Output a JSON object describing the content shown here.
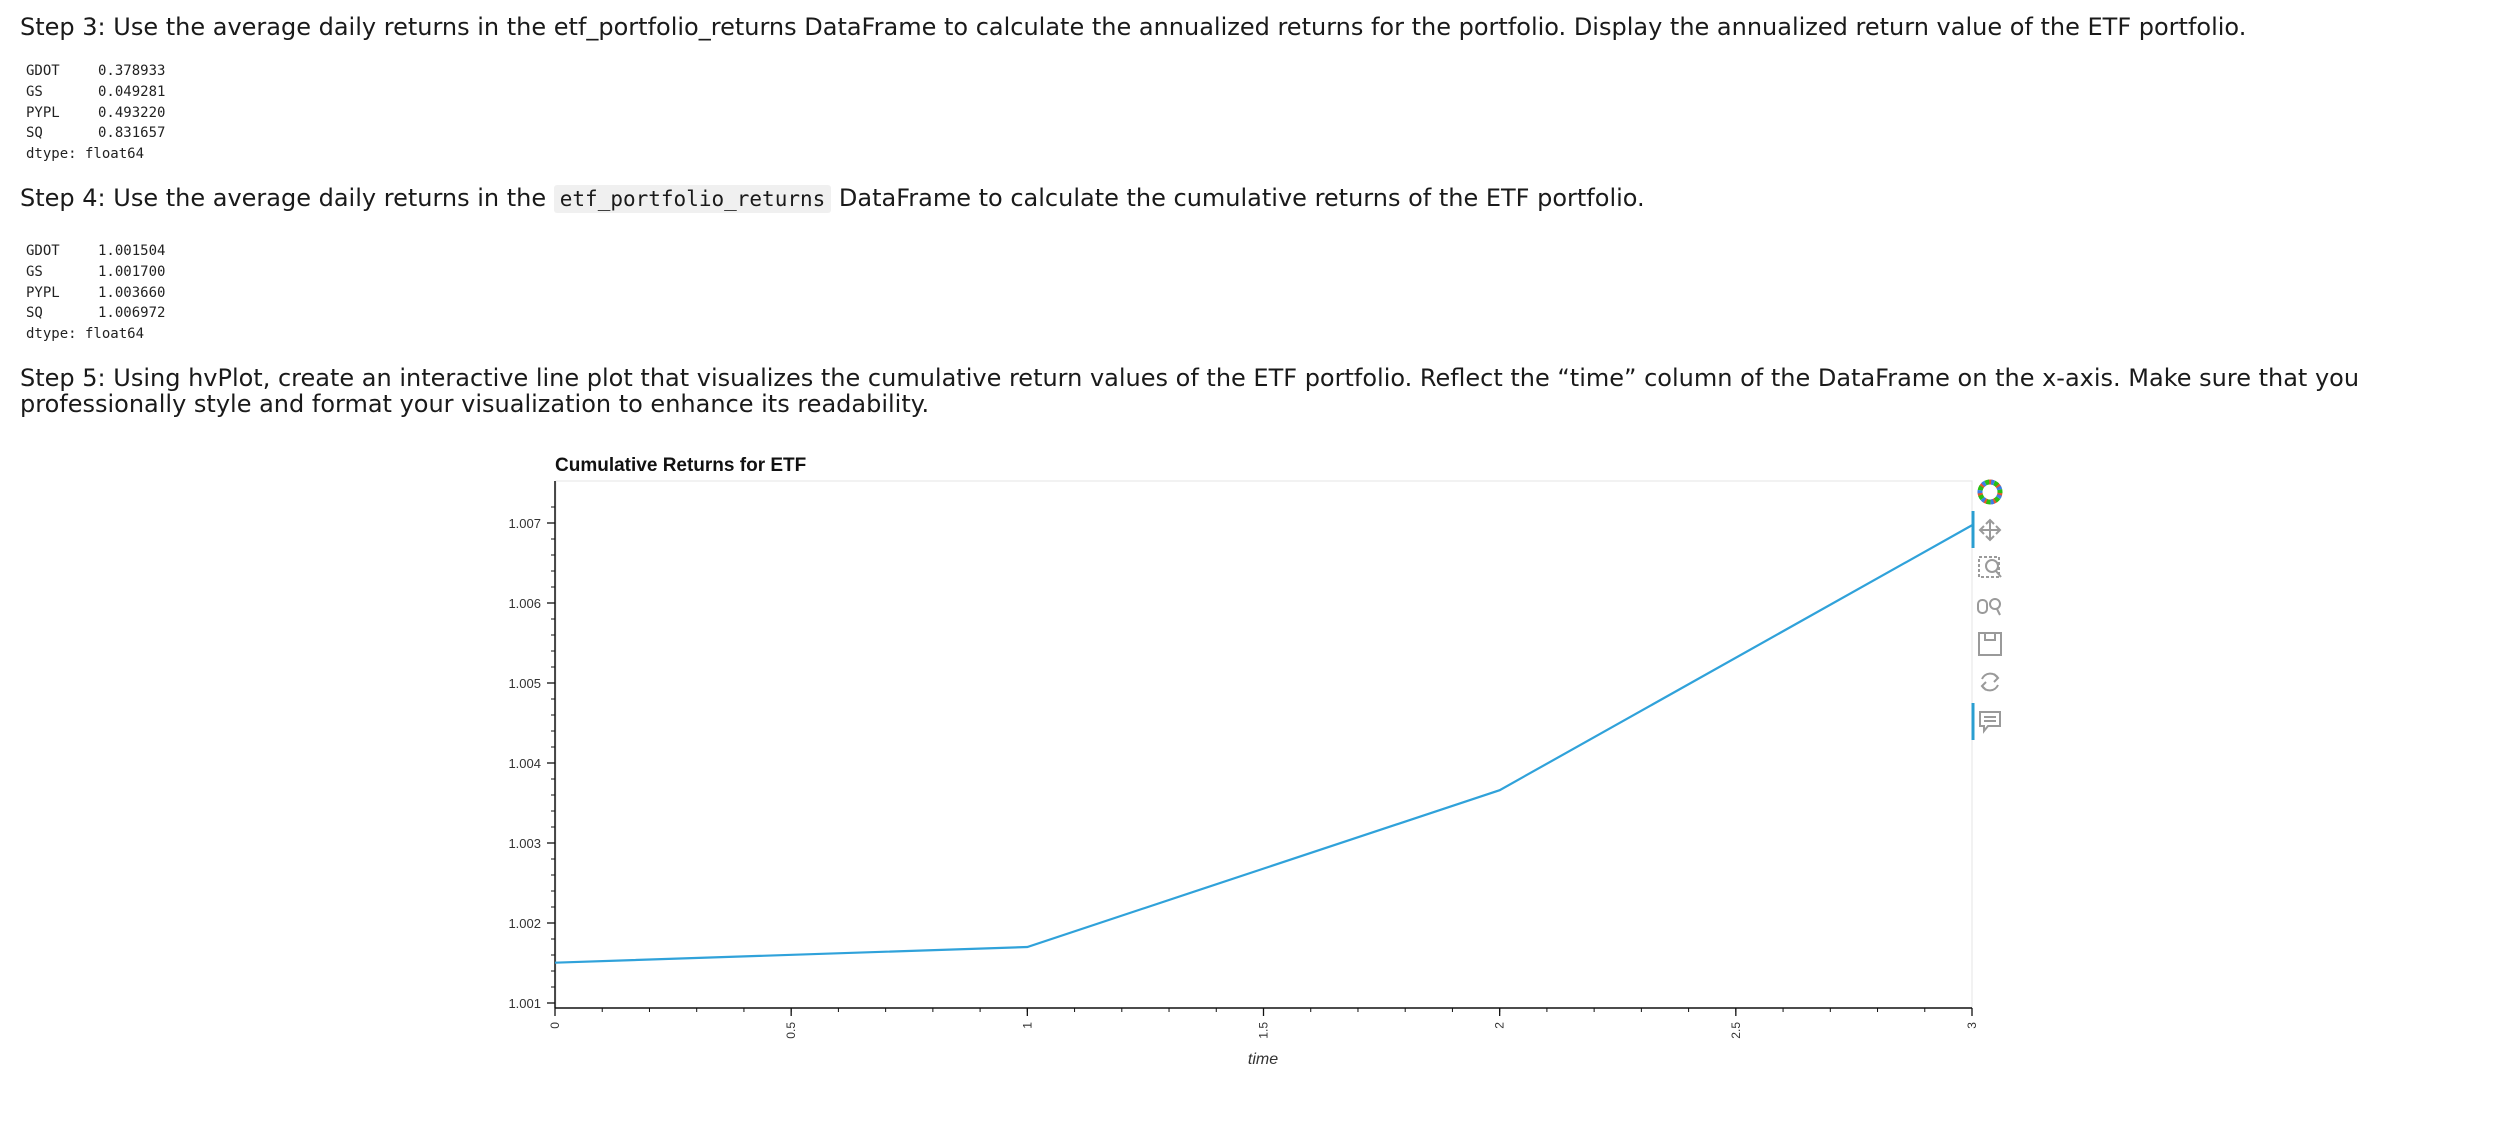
{
  "steps": {
    "step3": "Step 3: Use the average daily returns in the etf_portfolio_returns DataFrame to calculate the annualized returns for the portfolio. Display the annualized return value of the ETF portfolio.",
    "step4_pre": "Step 4: Use the average daily returns in the ",
    "step4_code": "etf_portfolio_returns",
    "step4_post": " DataFrame to calculate the cumulative returns of the ETF portfolio.",
    "step5": "Step 5: Using hvPlot, create an interactive line plot that visualizes the cumulative return values of the ETF portfolio. Reflect the “time” column of the DataFrame on the x-axis. Make sure that you professionally style and format your visualization to enhance its readability."
  },
  "output3": {
    "rows": [
      {
        "k": "GDOT",
        "v": "0.378933"
      },
      {
        "k": "GS",
        "v": "0.049281"
      },
      {
        "k": "PYPL",
        "v": "0.493220"
      },
      {
        "k": "SQ",
        "v": "0.831657"
      }
    ],
    "dtype": "dtype: float64"
  },
  "output4": {
    "rows": [
      {
        "k": "GDOT",
        "v": "1.001504"
      },
      {
        "k": "GS",
        "v": "1.001700"
      },
      {
        "k": "PYPL",
        "v": "1.003660"
      },
      {
        "k": "SQ",
        "v": "1.006972"
      }
    ],
    "dtype": "dtype: float64"
  },
  "chart_data": {
    "type": "line",
    "title": "Cumulative Returns for ETF",
    "xlabel": "time",
    "ylabel": "",
    "x": [
      0,
      1,
      2,
      3
    ],
    "values": [
      1.001504,
      1.0017,
      1.00366,
      1.006972
    ],
    "xlim": [
      0,
      3
    ],
    "ylim": [
      1.001,
      1.0072
    ],
    "xticks": [
      "0",
      "0.5",
      "1",
      "1.5",
      "2",
      "2.5",
      "3"
    ],
    "yticks": [
      "1.001",
      "1.002",
      "1.003",
      "1.004",
      "1.005",
      "1.006",
      "1.007"
    ],
    "line_color": "#30a2da",
    "grid": false
  },
  "toolbar": {
    "icons": [
      "bokeh-logo-icon",
      "pan-icon",
      "box-zoom-icon",
      "wheel-zoom-icon",
      "save-icon",
      "reset-icon",
      "hover-icon"
    ]
  }
}
